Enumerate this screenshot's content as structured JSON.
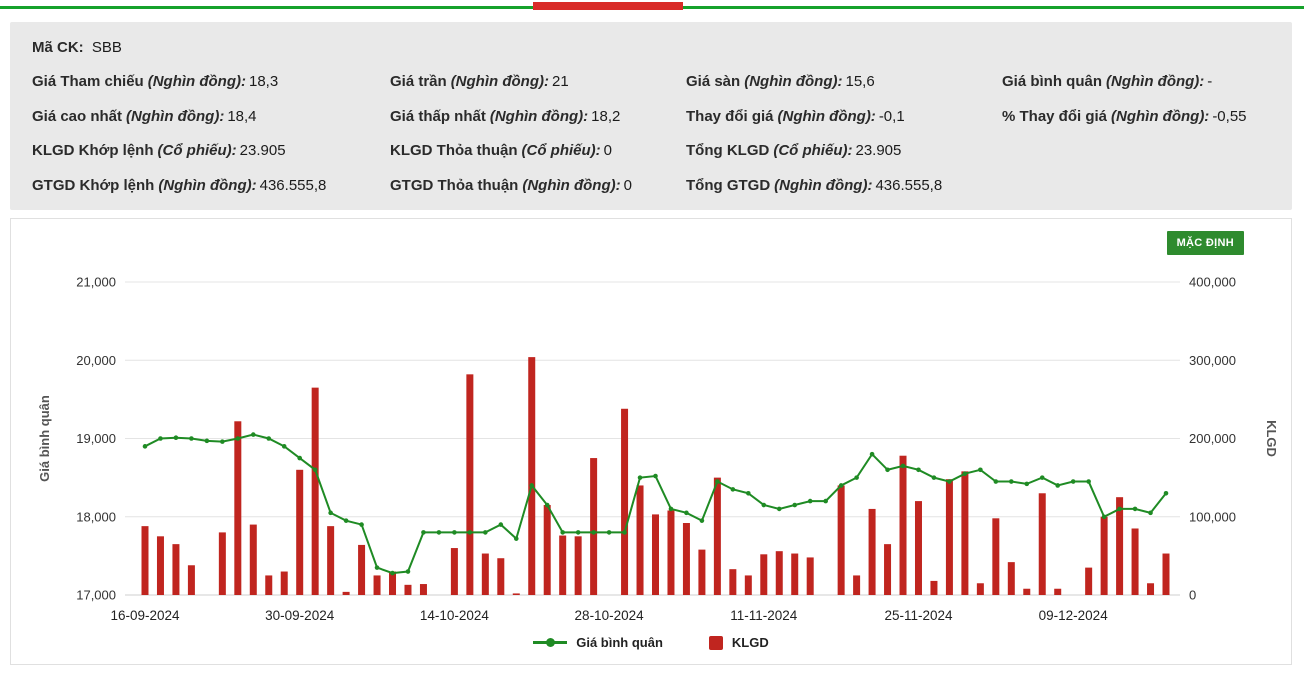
{
  "top_bar": {
    "accent_green": "#16a22b",
    "accent_red": "#d92b27"
  },
  "info_panel": {
    "ma_ck_label": "Mã CK:",
    "ma_ck_value": "SBB",
    "rows": [
      [
        {
          "label": "Giá Tham chiếu",
          "unit": "(Nghìn đồng):",
          "value": "18,3"
        },
        {
          "label": "Giá trần",
          "unit": "(Nghìn đồng):",
          "value": "21"
        },
        {
          "label": "Giá sàn",
          "unit": "(Nghìn đồng):",
          "value": "15,6"
        },
        {
          "label": "Giá bình quân",
          "unit": "(Nghìn đồng):",
          "value": "-"
        }
      ],
      [
        {
          "label": "Giá cao nhất",
          "unit": "(Nghìn đồng):",
          "value": "18,4"
        },
        {
          "label": "Giá thấp nhất",
          "unit": "(Nghìn đồng):",
          "value": "18,2"
        },
        {
          "label": "Thay đổi giá",
          "unit": "(Nghìn đồng):",
          "value": "-0,1"
        },
        {
          "label": "% Thay đổi giá",
          "unit": "(Nghìn đồng):",
          "value": "-0,55"
        }
      ],
      [
        {
          "label": "KLGD Khớp lệnh",
          "unit": "(Cổ phiếu):",
          "value": "23.905"
        },
        {
          "label": "KLGD Thỏa thuận",
          "unit": "(Cổ phiếu):",
          "value": "0"
        },
        {
          "label": "Tổng KLGD",
          "unit": "(Cổ phiếu):",
          "value": "23.905"
        }
      ],
      [
        {
          "label": "GTGD Khớp lệnh",
          "unit": "(Nghìn đồng):",
          "value": "436.555,8"
        },
        {
          "label": "GTGD Thỏa thuận",
          "unit": "(Nghìn đồng):",
          "value": "0"
        },
        {
          "label": "Tổng GTGD",
          "unit": "(Nghìn đồng):",
          "value": "436.555,8"
        }
      ]
    ]
  },
  "chart_panel": {
    "default_button_label": "MẶC ĐỊNH",
    "button_color": "#2e8b2e",
    "legend": [
      {
        "label": "Giá bình quân",
        "type": "line",
        "color": "#1f8b24"
      },
      {
        "label": "KLGD",
        "type": "bar",
        "color": "#c0251f"
      }
    ]
  },
  "chart_data": {
    "type": "line",
    "combo": "line+bar",
    "title": "",
    "grid": "horizontal",
    "legend_position": "bottom",
    "x": [
      "16-09-2024",
      "17-09-2024",
      "18-09-2024",
      "19-09-2024",
      "20-09-2024",
      "23-09-2024",
      "24-09-2024",
      "25-09-2024",
      "26-09-2024",
      "27-09-2024",
      "30-09-2024",
      "01-10-2024",
      "02-10-2024",
      "03-10-2024",
      "04-10-2024",
      "07-10-2024",
      "08-10-2024",
      "09-10-2024",
      "10-10-2024",
      "11-10-2024",
      "14-10-2024",
      "15-10-2024",
      "16-10-2024",
      "17-10-2024",
      "18-10-2024",
      "21-10-2024",
      "22-10-2024",
      "23-10-2024",
      "24-10-2024",
      "25-10-2024",
      "28-10-2024",
      "29-10-2024",
      "30-10-2024",
      "31-10-2024",
      "01-11-2024",
      "04-11-2024",
      "05-11-2024",
      "06-11-2024",
      "07-11-2024",
      "08-11-2024",
      "11-11-2024",
      "12-11-2024",
      "13-11-2024",
      "14-11-2024",
      "15-11-2024",
      "18-11-2024",
      "19-11-2024",
      "20-11-2024",
      "21-11-2024",
      "22-11-2024",
      "25-11-2024",
      "26-11-2024",
      "27-11-2024",
      "28-11-2024",
      "29-11-2024",
      "02-12-2024",
      "03-12-2024",
      "04-12-2024",
      "05-12-2024",
      "06-12-2024",
      "09-12-2024",
      "10-12-2024",
      "11-12-2024",
      "12-12-2024",
      "13-12-2024",
      "16-12-2024",
      "17-12-2024"
    ],
    "x_ticks": [
      "16-09-2024",
      "30-09-2024",
      "14-10-2024",
      "28-10-2024",
      "11-11-2024",
      "25-11-2024",
      "09-12-2024"
    ],
    "left_axis": {
      "title": "Giá bình quân",
      "min": 17000,
      "max": 21000,
      "ticks": [
        "17,000",
        "18,000",
        "19,000",
        "20,000",
        "21,000"
      ]
    },
    "right_axis": {
      "title": "KLGD",
      "min": 0,
      "max": 400000,
      "ticks": [
        "0",
        "100,000",
        "200,000",
        "300,000",
        "400,000"
      ]
    },
    "series": [
      {
        "name": "Giá bình quân",
        "type": "line",
        "axis": "left",
        "color": "#1f8b24",
        "values": [
          18900,
          19000,
          19010,
          19000,
          18970,
          18960,
          19000,
          19050,
          19000,
          18900,
          18750,
          18600,
          18050,
          17950,
          17900,
          17350,
          17280,
          17300,
          17800,
          17800,
          17800,
          17800,
          17800,
          17900,
          17720,
          18400,
          18150,
          17800,
          17800,
          17800,
          17800,
          17800,
          18500,
          18520,
          18100,
          18050,
          17950,
          18450,
          18350,
          18300,
          18150,
          18100,
          18150,
          18200,
          18200,
          18400,
          18500,
          18800,
          18600,
          18650,
          18600,
          18500,
          18450,
          18550,
          18600,
          18450,
          18450,
          18420,
          18500,
          18400,
          18450,
          18450,
          18000,
          18100,
          18100,
          18050,
          18300
        ]
      },
      {
        "name": "KLGD",
        "type": "bar",
        "axis": "right",
        "color": "#c0251f",
        "values": [
          88000,
          75000,
          65000,
          38000,
          0,
          80000,
          222000,
          90000,
          25000,
          30000,
          160000,
          265000,
          88000,
          4000,
          64000,
          25000,
          30000,
          13000,
          14000,
          0,
          60000,
          282000,
          53000,
          47000,
          2000,
          304000,
          115000,
          76000,
          75000,
          175000,
          0,
          238000,
          140000,
          103000,
          108000,
          92000,
          58000,
          150000,
          33000,
          25000,
          52000,
          56000,
          53000,
          48000,
          0,
          140000,
          25000,
          110000,
          65000,
          178000,
          120000,
          18000,
          148000,
          158000,
          15000,
          98000,
          42000,
          8000,
          130000,
          8000,
          0,
          35000,
          100000,
          125000,
          85000,
          15000,
          53000
        ]
      }
    ]
  }
}
